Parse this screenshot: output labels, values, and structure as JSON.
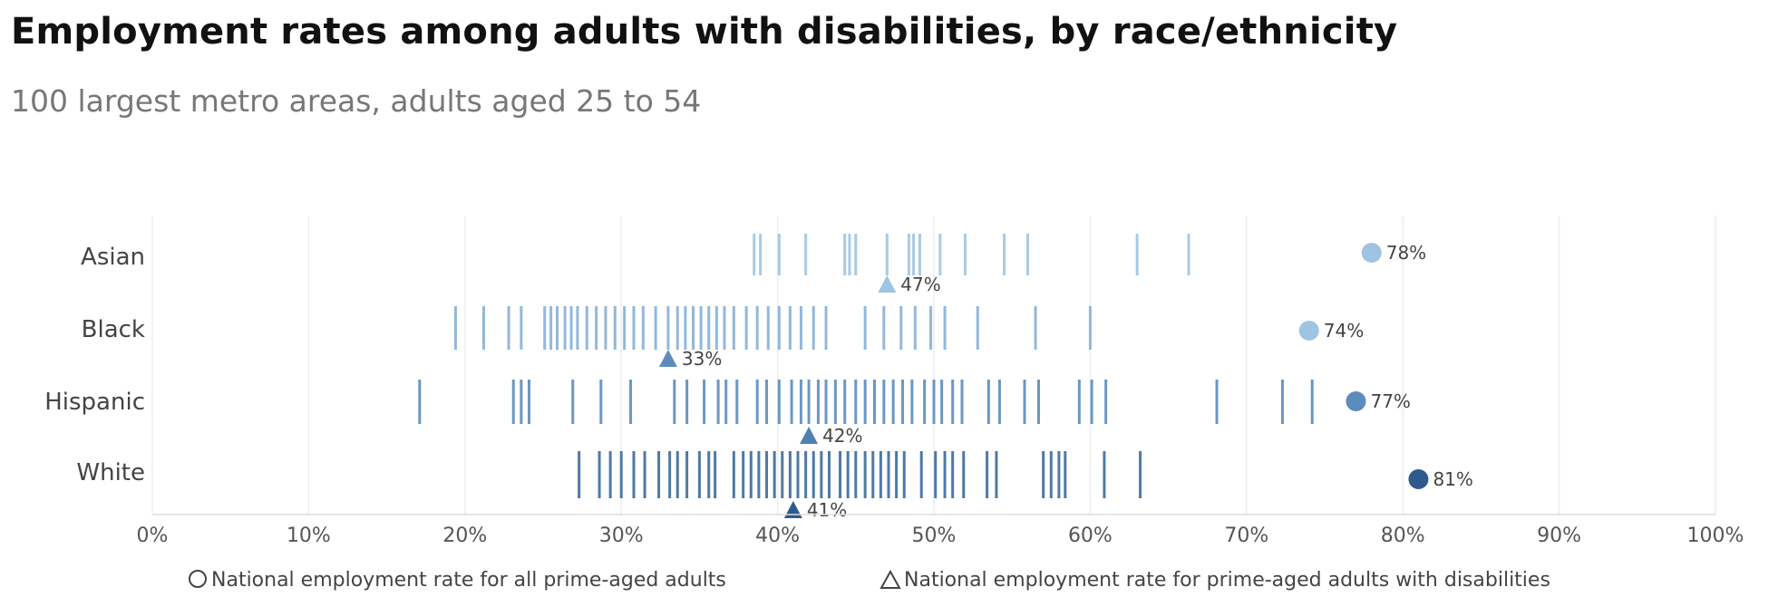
{
  "title": "Employment rates among adults with disabilities, by race/ethnicity",
  "subtitle": "100 largest metro areas, adults aged 25 to 54",
  "legend": {
    "circle_label": "National employment rate for all prime-aged adults",
    "triangle_label": "National employment rate for prime-aged adults with disabilities"
  },
  "chart_data": {
    "type": "strip",
    "x_ticks": [
      "0%",
      "10%",
      "20%",
      "30%",
      "40%",
      "50%",
      "60%",
      "70%",
      "80%",
      "90%",
      "100%"
    ],
    "xlim": [
      0,
      100
    ],
    "grid": true,
    "categories": [
      "Asian",
      "Black",
      "Hispanic",
      "White"
    ],
    "series": [
      {
        "category": "Asian",
        "color": "#9ec4e2",
        "metro_rates": [
          38.5,
          38.9,
          40.1,
          41.8,
          44.3,
          44.6,
          45.0,
          47.0,
          48.4,
          48.7,
          49.1,
          50.4,
          52.0,
          54.5,
          56.0,
          63.0,
          66.3
        ],
        "all_adults_rate": 78,
        "all_adults_label": "78%",
        "disability_rate": 47,
        "disability_label": "47%"
      },
      {
        "category": "Black",
        "color": "#86b0d6",
        "metro_rates": [
          19.4,
          21.2,
          22.8,
          23.6,
          25.1,
          25.5,
          25.9,
          26.4,
          26.8,
          27.2,
          27.8,
          28.4,
          29.0,
          29.6,
          30.2,
          30.8,
          31.4,
          32.2,
          33.0,
          33.6,
          34.1,
          34.6,
          35.1,
          35.6,
          36.1,
          36.6,
          37.2,
          38.0,
          38.7,
          39.4,
          40.1,
          40.8,
          41.5,
          42.3,
          43.1,
          45.6,
          46.8,
          47.9,
          48.8,
          49.8,
          50.7,
          52.8,
          56.5,
          60.0
        ],
        "all_adults_rate": 74,
        "all_adults_label": "74%",
        "disability_rate": 33,
        "disability_label": "33%"
      },
      {
        "category": "Hispanic",
        "color": "#5b8cbc",
        "metro_rates": [
          17.1,
          23.1,
          23.6,
          24.1,
          26.9,
          28.7,
          30.6,
          33.4,
          34.2,
          35.3,
          36.2,
          36.7,
          37.4,
          38.7,
          39.3,
          40.1,
          40.9,
          41.5,
          42.0,
          42.6,
          43.1,
          43.7,
          44.3,
          45.0,
          45.6,
          46.2,
          46.8,
          47.4,
          48.0,
          48.6,
          49.4,
          50.0,
          50.5,
          51.2,
          51.8,
          53.5,
          54.2,
          55.8,
          56.7,
          59.3,
          60.1,
          61.0,
          68.1,
          72.3,
          74.2
        ],
        "all_adults_rate": 77,
        "all_adults_label": "77%",
        "disability_rate": 42,
        "disability_label": "42%"
      },
      {
        "category": "White",
        "color": "#3c6a9c",
        "metro_rates": [
          27.3,
          28.6,
          29.3,
          30.0,
          30.8,
          31.5,
          32.4,
          33.1,
          33.6,
          34.2,
          35.0,
          35.6,
          36.0,
          37.2,
          37.8,
          38.3,
          38.8,
          39.3,
          39.8,
          40.3,
          40.8,
          41.3,
          41.8,
          42.3,
          42.8,
          43.3,
          44.0,
          44.5,
          45.0,
          45.6,
          46.1,
          46.6,
          47.1,
          47.6,
          48.1,
          49.2,
          50.1,
          50.7,
          51.2,
          51.9,
          53.4,
          54.0,
          57.0,
          57.5,
          58.0,
          58.4,
          60.9,
          63.2
        ],
        "all_adults_rate": 81,
        "all_adults_label": "81%",
        "disability_rate": 41,
        "disability_label": "41%"
      }
    ],
    "circle_colors": [
      "#9ec4e2",
      "#9ec4e2",
      "#5b8cbc",
      "#2e5a8c"
    ],
    "triangle_colors": [
      "#9ec4e2",
      "#5b8cbc",
      "#4f80b3",
      "#2e5a8c"
    ]
  }
}
